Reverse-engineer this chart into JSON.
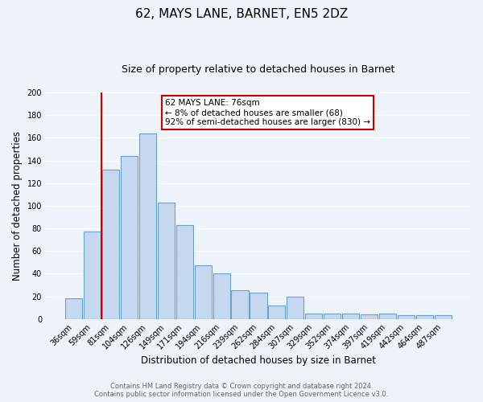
{
  "title": "62, MAYS LANE, BARNET, EN5 2DZ",
  "subtitle": "Size of property relative to detached houses in Barnet",
  "xlabel": "Distribution of detached houses by size in Barnet",
  "ylabel": "Number of detached properties",
  "categories": [
    "36sqm",
    "59sqm",
    "81sqm",
    "104sqm",
    "126sqm",
    "149sqm",
    "171sqm",
    "194sqm",
    "216sqm",
    "239sqm",
    "262sqm",
    "284sqm",
    "307sqm",
    "329sqm",
    "352sqm",
    "374sqm",
    "397sqm",
    "419sqm",
    "442sqm",
    "464sqm",
    "487sqm"
  ],
  "values": [
    18,
    77,
    132,
    144,
    164,
    103,
    83,
    47,
    40,
    25,
    23,
    12,
    20,
    5,
    5,
    5,
    4,
    5,
    3,
    3,
    3
  ],
  "bar_color": "#c5d8f0",
  "bar_edge_color": "#6aa0cc",
  "vline_x_index": 1.5,
  "vline_color": "#cc0000",
  "annotation_text": "62 MAYS LANE: 76sqm\n← 8% of detached houses are smaller (68)\n92% of semi-detached houses are larger (830) →",
  "annotation_box_color": "#ffffff",
  "annotation_box_edge_color": "#cc0000",
  "ylim": [
    0,
    200
  ],
  "yticks": [
    0,
    20,
    40,
    60,
    80,
    100,
    120,
    140,
    160,
    180,
    200
  ],
  "footer_line1": "Contains HM Land Registry data © Crown copyright and database right 2024.",
  "footer_line2": "Contains public sector information licensed under the Open Government Licence v3.0.",
  "background_color": "#eef2f9",
  "plot_bg_color": "#eef2f9",
  "grid_color": "#ffffff",
  "title_fontsize": 11,
  "subtitle_fontsize": 9,
  "xlabel_fontsize": 8.5,
  "ylabel_fontsize": 8.5,
  "tick_fontsize": 7,
  "annotation_fontsize": 7.5,
  "footer_fontsize": 6,
  "footer_color": "#666666"
}
